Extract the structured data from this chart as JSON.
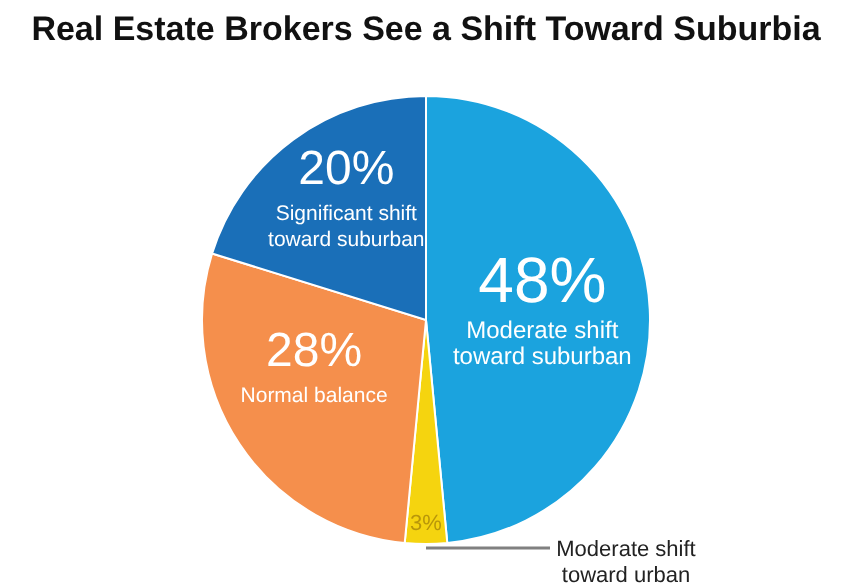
{
  "chart_data": {
    "type": "pie",
    "title": "Real Estate Brokers See a Shift Toward Suburbia",
    "categories": [
      "Moderate shift toward suburban",
      "Moderate shift toward urban",
      "Normal balance",
      "Significant shift toward suburban"
    ],
    "values": [
      48,
      3,
      28,
      20
    ],
    "colors": [
      "#1ba3de",
      "#f5d40f",
      "#f58f4c",
      "#1a6fb8"
    ],
    "value_labels": [
      "48%",
      "3%",
      "28%",
      "20%"
    ]
  }
}
